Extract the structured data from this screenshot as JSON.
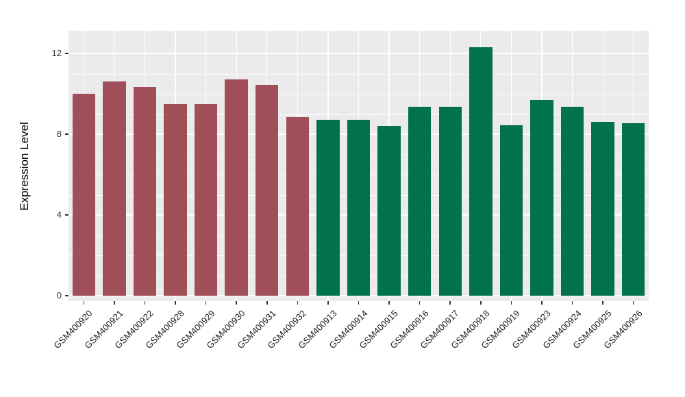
{
  "figure": {
    "background": "#FFFFFF",
    "panel_background": "#EBEBEB",
    "gridline_color": "#FFFFFF",
    "tick_color": "#333333",
    "text_color": "#1A1A1A"
  },
  "chart_data": {
    "type": "bar",
    "title": "",
    "xlabel": "",
    "ylabel": "Expression Level",
    "ylim": [
      0,
      12.8
    ],
    "yticks": [
      0,
      4,
      8,
      12
    ],
    "grid": "on",
    "legend": "none",
    "group_colors": {
      "groupA": "#A04E58",
      "groupB": "#02714E"
    },
    "bars": [
      {
        "label": "GSM400920",
        "value": 10.0,
        "group": "groupA"
      },
      {
        "label": "GSM400921",
        "value": 10.6,
        "group": "groupA"
      },
      {
        "label": "GSM400922",
        "value": 10.35,
        "group": "groupA"
      },
      {
        "label": "GSM400928",
        "value": 9.5,
        "group": "groupA"
      },
      {
        "label": "GSM400929",
        "value": 9.5,
        "group": "groupA"
      },
      {
        "label": "GSM400930",
        "value": 10.7,
        "group": "groupA"
      },
      {
        "label": "GSM400931",
        "value": 10.45,
        "group": "groupA"
      },
      {
        "label": "GSM400932",
        "value": 8.85,
        "group": "groupA"
      },
      {
        "label": "GSM400913",
        "value": 8.7,
        "group": "groupB"
      },
      {
        "label": "GSM400914",
        "value": 8.7,
        "group": "groupB"
      },
      {
        "label": "GSM400915",
        "value": 8.4,
        "group": "groupB"
      },
      {
        "label": "GSM400916",
        "value": 9.35,
        "group": "groupB"
      },
      {
        "label": "GSM400917",
        "value": 9.35,
        "group": "groupB"
      },
      {
        "label": "GSM400918",
        "value": 12.3,
        "group": "groupB"
      },
      {
        "label": "GSM400919",
        "value": 8.45,
        "group": "groupB"
      },
      {
        "label": "GSM400923",
        "value": 9.7,
        "group": "groupB"
      },
      {
        "label": "GSM400924",
        "value": 9.35,
        "group": "groupB"
      },
      {
        "label": "GSM400925",
        "value": 8.6,
        "group": "groupB"
      },
      {
        "label": "GSM400926",
        "value": 8.55,
        "group": "groupB"
      }
    ]
  }
}
